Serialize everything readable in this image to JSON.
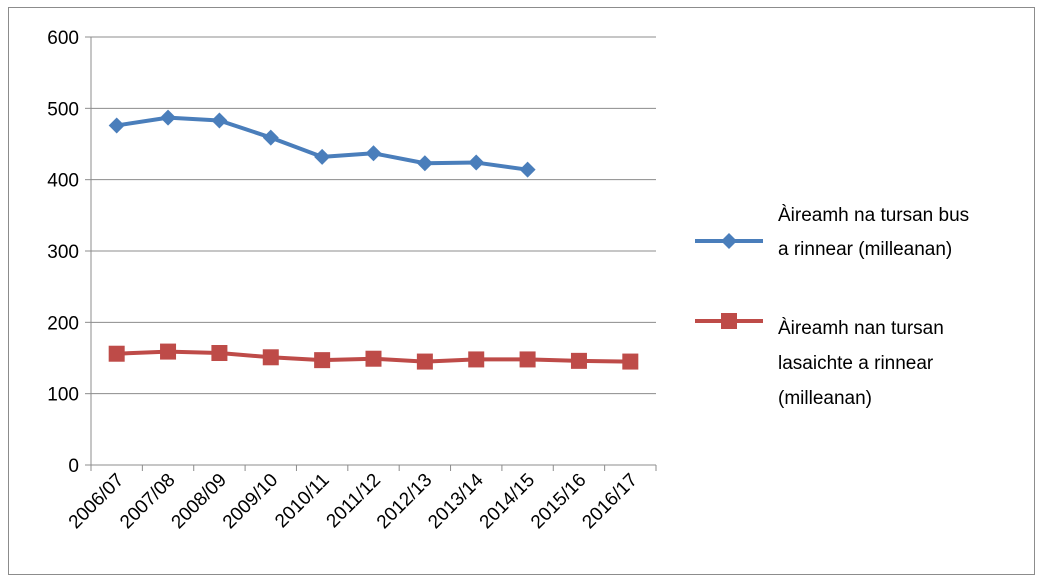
{
  "chart_data": {
    "type": "line",
    "categories": [
      "2006/07",
      "2007/08",
      "2008/09",
      "2009/10",
      "2010/11",
      "2011/12",
      "2012/13",
      "2013/14",
      "2014/15",
      "2015/16",
      "2016/17"
    ],
    "ylim": [
      0,
      600
    ],
    "yticks": [
      0,
      100,
      200,
      300,
      400,
      500,
      600
    ],
    "grid": true,
    "legend_position": "right",
    "series": [
      {
        "name": "Àireamh na tursan bus a rinnear (milleanan)",
        "name_lines": [
          "Àireamh na tursan bus",
          "a rinnear (milleanan)"
        ],
        "color": "#4a7ebb",
        "marker": "diamond",
        "values": [
          476,
          487,
          483,
          459,
          432,
          437,
          423,
          424,
          414,
          null,
          null
        ]
      },
      {
        "name": "Àireamh nan tursan lasaichte a rinnear (milleanan)",
        "name_lines": [
          "Àireamh nan tursan",
          "lasaichte a rinnear",
          "(milleanan)"
        ],
        "color": "#be4b48",
        "marker": "square",
        "values": [
          156,
          159,
          157,
          151,
          147,
          149,
          145,
          148,
          148,
          146,
          145
        ]
      }
    ]
  }
}
